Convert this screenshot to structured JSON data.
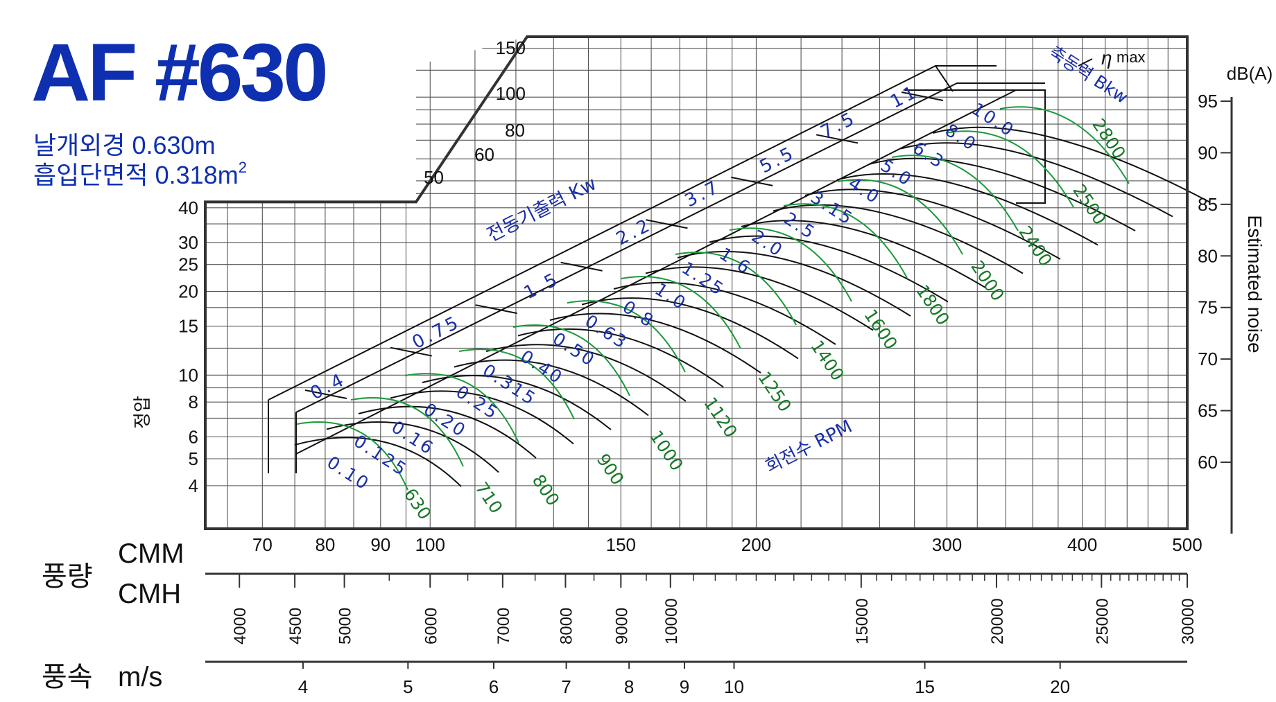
{
  "model": "AF #630",
  "spec_line1": "날개외경 0.630m",
  "spec_line2_text": "흡입단면적 0.318m",
  "spec_line2_sup": "2",
  "colors": {
    "title": "#0d2fb0",
    "blue_labels": "#1a2fa8",
    "rpm_curves": "#1b9a3a",
    "rpm_labels": "#187a28"
  },
  "chart_data": {
    "type": "line",
    "y_axis": {
      "label": "정압",
      "scale": "log",
      "ticks": [
        "4",
        "5",
        "6",
        "8",
        "10",
        "15",
        "20",
        "25",
        "30",
        "40"
      ]
    },
    "y_axis_upper_ticks": [
      "50",
      "60",
      "80",
      "100",
      "150"
    ],
    "x_axis": {
      "scale": "log",
      "unit": "CMM",
      "ticks": [
        "70",
        "80",
        "90",
        "100",
        "150",
        "200",
        "300",
        "400",
        "500"
      ]
    },
    "flow_label": "풍량",
    "cmm_label": "CMM",
    "cmh_label": "CMH",
    "cmh_ticks": [
      "4000",
      "4500",
      "5000",
      "6000",
      "7000",
      "8000",
      "9000",
      "10000",
      "15000",
      "20000",
      "25000",
      "30000"
    ],
    "velocity_label": "풍속",
    "velocity_unit": "m/s",
    "velocity_ticks": [
      "4",
      "5",
      "6",
      "7",
      "8",
      "9",
      "10",
      "15",
      "20"
    ],
    "noise_axis": {
      "label": "Estimated noise",
      "unit": "dB(A)",
      "ticks": [
        "60",
        "65",
        "70",
        "75",
        "80",
        "85",
        "90",
        "95"
      ]
    },
    "motor_output_title": "전동기출력 Kw",
    "motor_outputs": [
      "0.4",
      "0.75",
      "1.5",
      "2.2",
      "3.7",
      "5.5",
      "7.5",
      "11"
    ],
    "shaft_power_title": "축동력 Bkw",
    "shaft_powers": [
      "0.10",
      "0.125",
      "0.16",
      "0.20",
      "0.25",
      "0.315",
      "0.40",
      "0.50",
      "0.63",
      "0.8",
      "1.0",
      "1.25",
      "1.6",
      "2.0",
      "2.5",
      "3.15",
      "4.0",
      "5.0",
      "6.3",
      "8.0",
      "10.0"
    ],
    "rpm_title": "회전수 RPM",
    "rpm_values": [
      "630",
      "710",
      "800",
      "900",
      "1000",
      "1120",
      "1250",
      "1400",
      "1600",
      "1800",
      "2000",
      "2400",
      "2500",
      "2800"
    ],
    "efficiency_label": "η",
    "efficiency_suffix": "max"
  }
}
